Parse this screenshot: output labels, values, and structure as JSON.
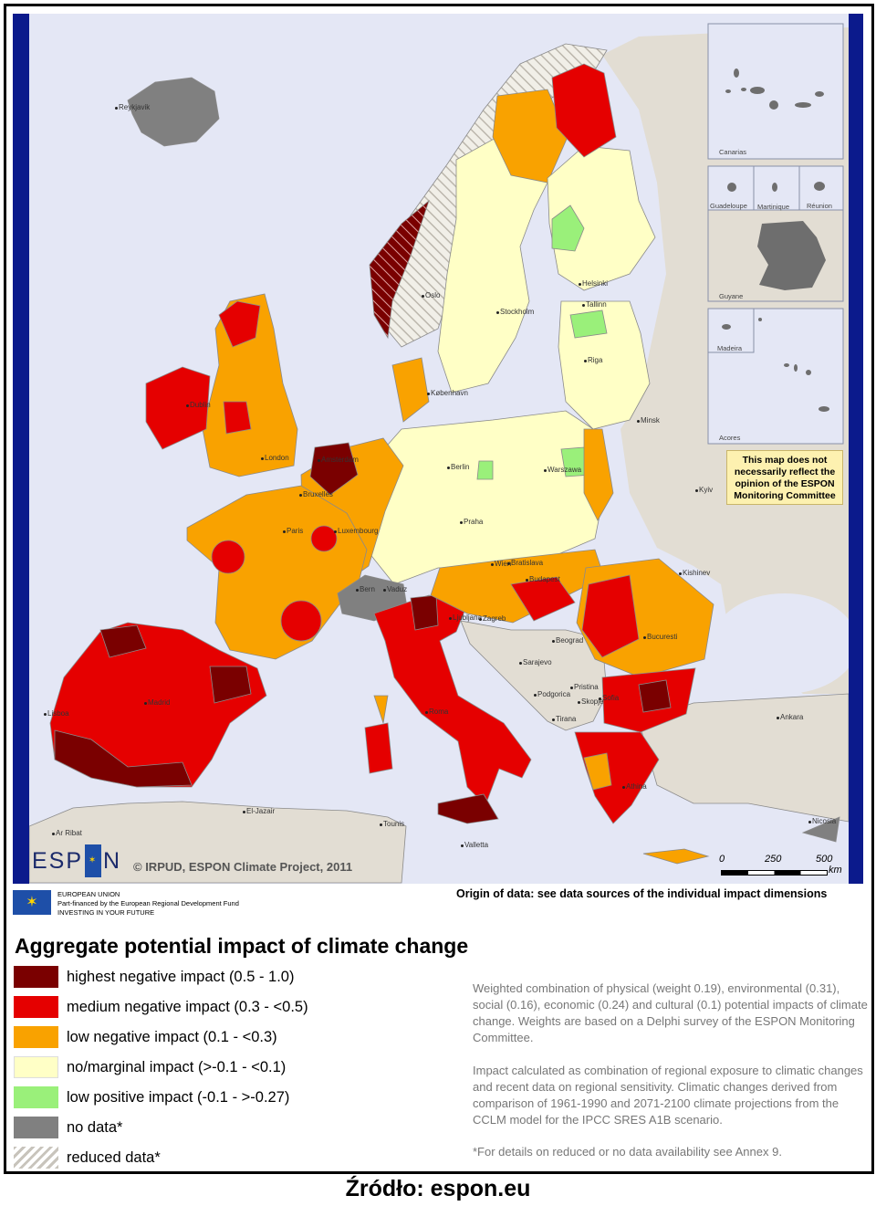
{
  "map": {
    "cities": [
      "Reykjavik",
      "Oslo",
      "Stockholm",
      "Helsinki",
      "Tallinn",
      "Riga",
      "København",
      "Minsk",
      "Dublin",
      "Amsterdam",
      "Berlin",
      "Warszawa",
      "Kyiv",
      "Praha",
      "Wien",
      "Bratislava",
      "Budapest",
      "Kishinev",
      "Bern",
      "Vaduz",
      "Ljubljana",
      "Zagreb",
      "Beograd",
      "Sarajevo",
      "Bucuresti",
      "Pristina",
      "Podgorica",
      "Skopje",
      "Tirana",
      "Ankara",
      "Athina",
      "Nicosia",
      "Valletta",
      "Tounis",
      "El-Jazair",
      "Ar Ribat",
      "Lisboa",
      "Luxembourg",
      "Bruxelles",
      "London",
      "Paris",
      "Madrid",
      "Roma",
      "Sofia"
    ],
    "insets": {
      "canarias": "Canarias",
      "guadeloupe": "Guadeloupe",
      "martinique": "Martinique",
      "reunion": "Réunion",
      "guyane": "Guyane",
      "madeira": "Madeira",
      "acores": "Acores"
    },
    "disclaimer": "This map does not necessarily reflect the opinion of the ESPON Monitoring Committee",
    "copyright": "© IRPUD, ESPON Climate Project, 2011",
    "logo_text": "ESPON",
    "scale": {
      "labels": [
        "0",
        "250",
        "500"
      ],
      "unit": "km"
    },
    "colors": {
      "sea": "#e4e7f5",
      "non_espon_land": "#e2ddd3",
      "highest": "#7a0000",
      "medium": "#e50000",
      "low": "#f9a200",
      "marginal": "#ffffc6",
      "positive": "#9af07a",
      "nodata": "#808080",
      "frame_blue": "#0b1a8c"
    }
  },
  "eu_strip": {
    "line1": "EUROPEAN UNION",
    "line2": "Part-financed by the European Regional Development Fund",
    "line3": "INVESTING IN YOUR FUTURE"
  },
  "origin": "Origin of data: see data sources of the individual impact dimensions",
  "title": "Aggregate potential impact of climate change",
  "legend": [
    {
      "label": "highest negative impact (0.5 - 1.0)",
      "color": "#7a0000"
    },
    {
      "label": "medium negative impact (0.3 - <0.5)",
      "color": "#e50000"
    },
    {
      "label": "low negative impact (0.1 - <0.3)",
      "color": "#f9a200"
    },
    {
      "label": "no/marginal impact (>-0.1 - <0.1)",
      "color": "#ffffc6"
    },
    {
      "label": "low positive impact (-0.1 - >-0.27)",
      "color": "#9af07a"
    },
    {
      "label": "no data*",
      "color": "#808080"
    },
    {
      "label": "reduced data*",
      "color": "hatched"
    }
  ],
  "description": [
    "Weighted combination of physical (weight 0.19), environmental (0.31), social (0.16), economic (0.24) and cultural (0.1) potential impacts of climate change. Weights are based on a Delphi survey of the ESPON Monitoring Committee.",
    "Impact calculated as combination of regional exposure to climatic changes and recent data on regional sensitivity. Climatic changes derived from comparison of 1961-1990 and 2071-2100 climate projections from the CCLM model for the IPCC SRES A1B scenario.",
    "*For details on reduced or no data availability see Annex 9."
  ],
  "source": "Źródło: espon.eu"
}
